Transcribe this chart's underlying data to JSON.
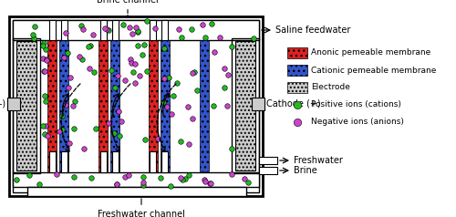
{
  "bg_color": "#ffffff",
  "green": "#22bb22",
  "magenta": "#cc44cc",
  "red_mem": "#dd2222",
  "blue_mem": "#3355cc",
  "electrode_color": "#cccccc",
  "legend_labels": [
    "Anonic pemeable membrane",
    "Cationic pemeable membrane",
    "Electrode",
    "Positive ions (cations)",
    "Negative ions (anions)"
  ],
  "legend_colors": [
    "#dd2222",
    "#3355cc",
    "#cccccc",
    "#22bb22",
    "#cc44cc"
  ]
}
